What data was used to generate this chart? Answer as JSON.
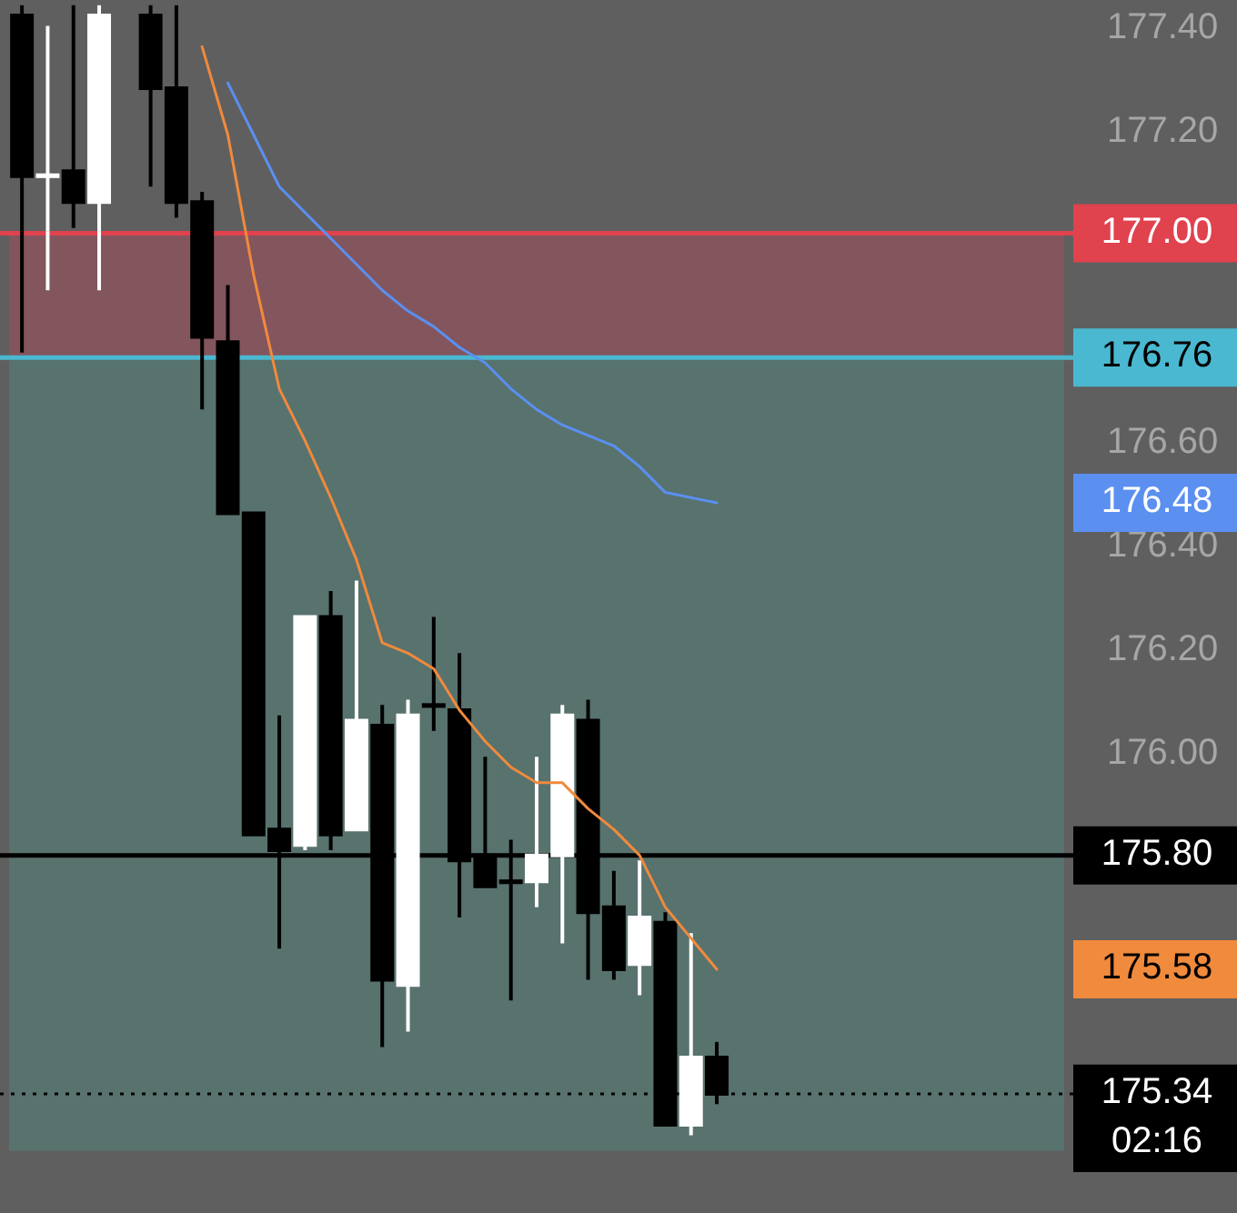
{
  "chart_data": {
    "type": "candlestick",
    "categories": [
      null,
      null,
      null,
      null,
      null,
      null,
      null,
      null,
      null,
      null,
      null,
      null,
      null,
      null,
      null,
      null,
      null,
      null,
      null,
      null,
      null,
      null,
      null,
      null,
      null,
      null,
      null,
      null,
      null,
      null,
      null,
      null,
      null,
      null,
      null,
      null,
      null,
      null,
      null,
      null,
      null
    ],
    "ohlc": [
      [
        177.42,
        177.44,
        176.77,
        177.11
      ],
      [
        177.11,
        177.4,
        176.89,
        177.112
      ],
      [
        177.12,
        177.44,
        177.01,
        177.06
      ],
      [
        177.06,
        177.44,
        176.89,
        177.42
      ],
      null,
      [
        177.42,
        177.44,
        177.09,
        177.28
      ],
      [
        177.28,
        177.44,
        177.03,
        177.06
      ],
      [
        177.06,
        177.08,
        176.66,
        176.8
      ],
      [
        176.79,
        176.9,
        176.46,
        176.46
      ],
      [
        176.46,
        176.46,
        175.84,
        175.84
      ],
      [
        175.85,
        176.07,
        175.62,
        175.81
      ],
      [
        175.82,
        176.26,
        175.81,
        176.26
      ],
      [
        176.26,
        176.31,
        175.81,
        175.84
      ],
      [
        175.85,
        176.33,
        175.85,
        176.06
      ],
      [
        176.05,
        176.09,
        175.43,
        175.56
      ],
      [
        175.55,
        176.1,
        175.46,
        176.07
      ],
      [
        176.09,
        176.26,
        176.04,
        176.088
      ],
      [
        176.08,
        176.19,
        175.68,
        175.79
      ],
      [
        175.8,
        175.99,
        175.74,
        175.74
      ],
      [
        175.75,
        175.83,
        175.52,
        175.748
      ],
      [
        175.75,
        175.99,
        175.7,
        175.8
      ],
      [
        175.8,
        176.09,
        175.63,
        176.07
      ],
      [
        176.06,
        176.1,
        175.56,
        175.69
      ],
      [
        175.7,
        175.77,
        175.56,
        175.58
      ],
      [
        175.59,
        175.79,
        175.53,
        175.68
      ],
      [
        175.67,
        175.69,
        175.28,
        175.28
      ],
      [
        175.28,
        175.65,
        175.26,
        175.41
      ],
      [
        175.41,
        175.44,
        175.32,
        175.34
      ],
      null,
      null,
      null,
      null,
      null,
      null,
      null,
      null,
      null,
      null,
      null,
      null,
      null
    ],
    "series": [
      {
        "type": "line",
        "color": "#f08a3c",
        "values": [
          null,
          null,
          null,
          null,
          null,
          null,
          null,
          177.36,
          177.19,
          176.92,
          176.7,
          176.6,
          176.49,
          176.37,
          176.21,
          176.19,
          176.16,
          176.08,
          176.02,
          175.97,
          175.94,
          175.94,
          175.89,
          175.85,
          175.8,
          175.7,
          175.64,
          175.58,
          null,
          null,
          null,
          null,
          null,
          null,
          null,
          null,
          null,
          null,
          null,
          null,
          null
        ],
        "name": null
      },
      {
        "type": "line",
        "color": "#5b8ff0",
        "values": [
          null,
          null,
          null,
          null,
          null,
          null,
          null,
          null,
          177.29,
          177.19,
          177.09,
          177.04,
          176.99,
          176.94,
          176.89,
          176.85,
          176.82,
          176.78,
          176.75,
          176.7,
          176.66,
          176.63,
          176.61,
          176.59,
          176.55,
          176.5,
          176.49,
          176.48,
          null,
          null,
          null,
          null,
          null,
          null,
          null,
          null,
          null,
          null,
          null,
          null,
          null
        ],
        "name": null
      }
    ],
    "ylim": [
      175.11,
      177.45
    ],
    "yticks": [
      {
        "value": 177.4,
        "label": "177.40"
      },
      {
        "value": 177.2,
        "label": "177.20"
      },
      {
        "value": 176.6,
        "label": "176.60"
      },
      {
        "value": 176.4,
        "label": "176.40"
      },
      {
        "value": 176.2,
        "label": "176.20"
      },
      {
        "value": 176.0,
        "label": "176.00"
      }
    ],
    "ref_lines": [
      {
        "axis": "y",
        "value": 177.0,
        "label": "177.00",
        "color": "#e0424e",
        "line_style": "solid"
      },
      {
        "axis": "y",
        "value": 176.76,
        "label": "176.76",
        "color": "#4ab8d0",
        "line_style": "solid"
      },
      {
        "axis": "y",
        "value": 175.8,
        "label": "175.80",
        "color": "#000000",
        "line_style": "solid"
      },
      {
        "axis": "y",
        "value": 175.34,
        "label": "175.34\n02:16",
        "color": "#000000",
        "line_style": "dotted"
      }
    ],
    "bands": [
      {
        "axis": "y",
        "from": 176.76,
        "to": 177.0,
        "color": "#b04a5a"
      },
      {
        "axis": "y",
        "from": 175.23,
        "to": 176.76,
        "color": "#4f8a80"
      }
    ],
    "annotations": [
      "175.58",
      "176.48"
    ],
    "tick_labels": "y",
    "grid": false
  }
}
